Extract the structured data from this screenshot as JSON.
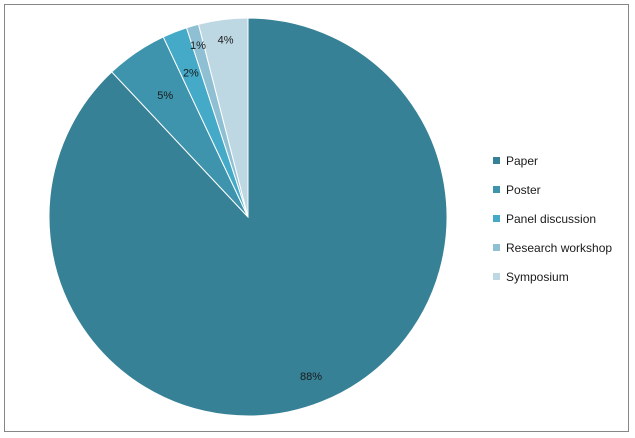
{
  "chart_data": {
    "type": "pie",
    "categories": [
      "Paper",
      "Poster",
      "Panel discussion",
      "Research workshop",
      "Symposium"
    ],
    "values": [
      88,
      5,
      2,
      1,
      4
    ],
    "data_labels": [
      "88%",
      "5%",
      "2%",
      "1%",
      "4%"
    ],
    "colors": [
      "#378196",
      "#3d94ac",
      "#45aac8",
      "#8fbfd2",
      "#bdd8e3"
    ],
    "start_angle_deg": 0,
    "direction": "clockwise",
    "legend": "right",
    "title": ""
  }
}
